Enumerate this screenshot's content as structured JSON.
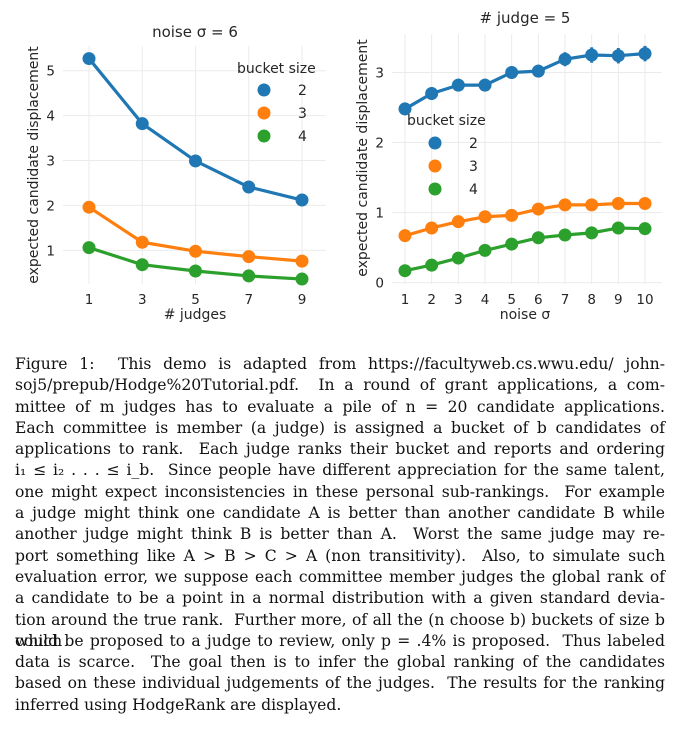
{
  "chart_data": [
    {
      "type": "line",
      "title": "noise σ = 6",
      "xlabel": "# judges",
      "ylabel": "expected candidate displacement",
      "x": [
        1,
        3,
        5,
        7,
        9
      ],
      "xticks": [
        "1",
        "3",
        "5",
        "7",
        "9"
      ],
      "yticks": [
        "1",
        "2",
        "3",
        "4",
        "5"
      ],
      "ylim": [
        0.25,
        5.55
      ],
      "legend_title": "bucket size",
      "legend_position": "top-right",
      "grid": true,
      "series": [
        {
          "name": "2",
          "color": "#1f77b4",
          "values": [
            5.27,
            3.82,
            2.99,
            2.41,
            2.12
          ]
        },
        {
          "name": "3",
          "color": "#ff7f0e",
          "values": [
            1.96,
            1.18,
            0.98,
            0.86,
            0.76
          ]
        },
        {
          "name": "4",
          "color": "#2ca02c",
          "values": [
            1.06,
            0.68,
            0.54,
            0.43,
            0.36
          ]
        }
      ]
    },
    {
      "type": "line",
      "title": "# judge = 5",
      "xlabel": "noise σ",
      "ylabel": "expected candidate displacement",
      "x": [
        1,
        2,
        3,
        4,
        5,
        6,
        7,
        8,
        9,
        10
      ],
      "xticks": [
        "1",
        "2",
        "3",
        "4",
        "5",
        "6",
        "7",
        "8",
        "9",
        "10"
      ],
      "yticks": [
        "0",
        "1",
        "2",
        "3"
      ],
      "ylim": [
        -0.02,
        3.55
      ],
      "legend_title": "bucket size",
      "legend_position": "middle-left",
      "grid": true,
      "series": [
        {
          "name": "2",
          "color": "#1f77b4",
          "values": [
            2.48,
            2.7,
            2.82,
            2.82,
            3.0,
            3.02,
            3.19,
            3.25,
            3.24,
            3.27
          ],
          "err": [
            0.09,
            0.09,
            0.09,
            0.09,
            0.09,
            0.09,
            0.1,
            0.11,
            0.11,
            0.11
          ]
        },
        {
          "name": "3",
          "color": "#ff7f0e",
          "values": [
            0.67,
            0.78,
            0.87,
            0.94,
            0.96,
            1.05,
            1.11,
            1.11,
            1.13,
            1.13
          ],
          "err": [
            0.03,
            0.03,
            0.03,
            0.03,
            0.03,
            0.03,
            0.03,
            0.03,
            0.03,
            0.03
          ]
        },
        {
          "name": "4",
          "color": "#2ca02c",
          "values": [
            0.17,
            0.25,
            0.35,
            0.46,
            0.55,
            0.64,
            0.68,
            0.71,
            0.78,
            0.77
          ],
          "err": [
            0.03,
            0.03,
            0.03,
            0.03,
            0.03,
            0.03,
            0.03,
            0.03,
            0.03,
            0.03
          ]
        }
      ]
    }
  ],
  "caption": {
    "lines": [
      "Figure 1:  This demo is adapted from https://facultyweb.cs.wwu.edu/ john-",
      "soj5/prepub/Hodge%20Tutorial.pdf.  In a round of grant applications, a com-",
      "mittee of m judges has to evaluate a pile of n = 20 candidate applications.",
      "Each committee is member (a judge) is assigned a bucket of b candidates of",
      "applications to rank.  Each judge ranks their bucket and reports and ordering",
      "i₁ ≤ i₂ . . . ≤ i_b.  Since people have different appreciation for the same talent,",
      "one might expect inconsistencies in these personal sub-rankings.  For example",
      "a judge might think one candidate A is better than another candidate B while",
      "another judge might think B is better than A.  Worst the same judge may re-",
      "port something like A > B > C > A (non transitivity).  Also, to simulate such",
      "evaluation error, we suppose each committee member judges the global rank of",
      "a candidate to be a point in a normal distribution with a given standard devia-",
      "tion around the true rank.  Further more, of all the (n choose b) buckets of size b which",
      "could be proposed to a judge to review, only p = .4% is proposed.  Thus labeled",
      "data is scarce.  The goal then is to infer the global ranking of the candidates",
      "based on these individual judgements of the judges.  The results for the ranking",
      "inferred using HodgeRank are displayed."
    ]
  }
}
